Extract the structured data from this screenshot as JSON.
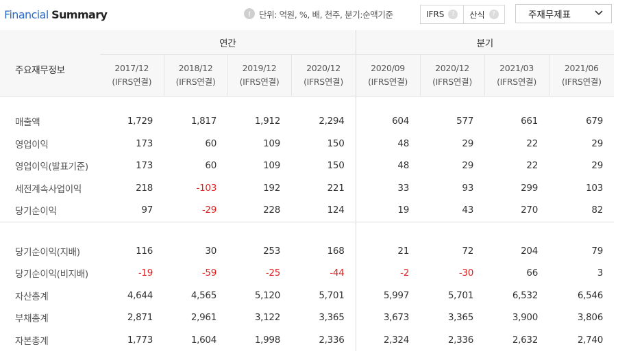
{
  "header": {
    "title_part1": "Financial",
    "title_part2": "Summary",
    "unit_text": "단위: 억원, %, 배, 천주, 분기:순액기준",
    "ifrs_label": "IFRS",
    "calc_label": "산식",
    "select_value": "주재무제표"
  },
  "table": {
    "corner_label": "주요재무정보",
    "annual_label": "연간",
    "quarter_label": "분기",
    "periods": [
      {
        "date": "2017/12",
        "basis": "(IFRS연결)"
      },
      {
        "date": "2018/12",
        "basis": "(IFRS연결)"
      },
      {
        "date": "2019/12",
        "basis": "(IFRS연결)"
      },
      {
        "date": "2020/12",
        "basis": "(IFRS연결)"
      },
      {
        "date": "2020/09",
        "basis": "(IFRS연결)"
      },
      {
        "date": "2020/12",
        "basis": "(IFRS연결)"
      },
      {
        "date": "2021/03",
        "basis": "(IFRS연결)"
      },
      {
        "date": "2021/06",
        "basis": "(IFRS연결)"
      }
    ],
    "rows_group1": [
      {
        "name": "매출액",
        "values": [
          "1,729",
          "1,817",
          "1,912",
          "2,294",
          "604",
          "577",
          "661",
          "679"
        ]
      },
      {
        "name": "영업이익",
        "values": [
          "173",
          "60",
          "109",
          "150",
          "48",
          "29",
          "22",
          "29"
        ]
      },
      {
        "name": "영업이익(발표기준)",
        "values": [
          "173",
          "60",
          "109",
          "150",
          "48",
          "29",
          "22",
          "29"
        ]
      },
      {
        "name": "세전계속사업이익",
        "values": [
          "218",
          "-103",
          "192",
          "221",
          "33",
          "93",
          "299",
          "103"
        ]
      },
      {
        "name": "당기순이익",
        "values": [
          "97",
          "-29",
          "228",
          "124",
          "19",
          "43",
          "270",
          "82"
        ]
      }
    ],
    "rows_group2": [
      {
        "name": "당기순이익(지배)",
        "values": [
          "116",
          "30",
          "253",
          "168",
          "21",
          "72",
          "204",
          "79"
        ]
      },
      {
        "name": "당기순이익(비지배)",
        "values": [
          "-19",
          "-59",
          "-25",
          "-44",
          "-2",
          "-30",
          "66",
          "3"
        ]
      },
      {
        "name": "자산총계",
        "values": [
          "4,644",
          "4,565",
          "5,120",
          "5,701",
          "5,997",
          "5,701",
          "6,532",
          "6,546"
        ]
      },
      {
        "name": "부채총계",
        "values": [
          "2,871",
          "2,961",
          "3,122",
          "3,365",
          "3,673",
          "3,365",
          "3,900",
          "3,806"
        ]
      },
      {
        "name": "자본총계",
        "values": [
          "1,773",
          "1,604",
          "1,998",
          "2,336",
          "2,324",
          "2,336",
          "2,632",
          "2,740"
        ]
      }
    ]
  }
}
